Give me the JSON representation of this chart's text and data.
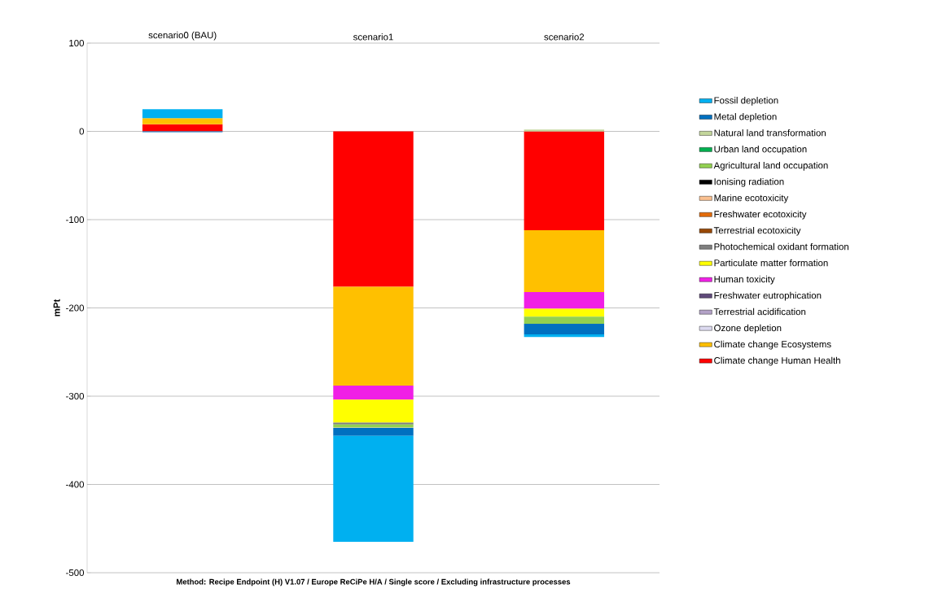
{
  "chart_data": {
    "type": "bar",
    "stacked": true,
    "ylabel": "mPt",
    "categories": [
      "scenario0 (BAU)",
      "scenario1",
      "scenario2"
    ],
    "series": [
      {
        "name": "Climate change Human Health",
        "color": "#ff0000",
        "values": [
          8,
          -176,
          -112
        ]
      },
      {
        "name": "Climate change Ecosystems",
        "color": "#ffc000",
        "values": [
          7,
          -112,
          -70
        ]
      },
      {
        "name": "Ozone depletion",
        "color": "#dcdaf0",
        "values": [
          0,
          0,
          0
        ]
      },
      {
        "name": "Terrestrial acidification",
        "color": "#b3a2c7",
        "values": [
          0,
          0,
          0
        ]
      },
      {
        "name": "Freshwater eutrophication",
        "color": "#604a7b",
        "values": [
          0,
          0,
          0
        ]
      },
      {
        "name": "Human toxicity",
        "color": "#f020e6",
        "values": [
          0,
          -16,
          -19
        ]
      },
      {
        "name": "Particulate matter formation",
        "color": "#ffff00",
        "values": [
          0,
          -26,
          -9
        ]
      },
      {
        "name": "Photochemical oxidant formation",
        "color": "#7f7f7f",
        "values": [
          0,
          -2,
          0
        ]
      },
      {
        "name": "Terrestrial ecotoxicity",
        "color": "#984807",
        "values": [
          0,
          0,
          0
        ]
      },
      {
        "name": "Freshwater ecotoxicity",
        "color": "#e46c0a",
        "values": [
          0,
          0,
          0
        ]
      },
      {
        "name": "Marine ecotoxicity",
        "color": "#fac090",
        "values": [
          0,
          0,
          0
        ]
      },
      {
        "name": "Ionising radiation",
        "color": "#000000",
        "values": [
          0,
          0,
          0
        ]
      },
      {
        "name": "Agricultural land occupation",
        "color": "#92d050",
        "values": [
          0,
          -3,
          -8
        ]
      },
      {
        "name": "Urban land occupation",
        "color": "#00b050",
        "values": [
          0,
          0,
          0
        ]
      },
      {
        "name": "Natural land transformation",
        "color": "#c3d69b",
        "values": [
          0,
          -1,
          2
        ]
      },
      {
        "name": "Metal depletion",
        "color": "#0070c0",
        "values": [
          -1,
          -9,
          -12
        ]
      },
      {
        "name": "Fossil depletion",
        "color": "#00b0f0",
        "values": [
          10,
          -120,
          -3
        ]
      }
    ],
    "ylim": [
      -500,
      100
    ],
    "yticks": [
      -500,
      -400,
      -300,
      -200,
      -100,
      0,
      100
    ],
    "grid": "y",
    "legend": "right",
    "annotations": [
      "Method: Recipe Endpoint (H) V1.07 / Europe ReCiPe H/A / Single score / Excluding infrastructure processes"
    ]
  }
}
